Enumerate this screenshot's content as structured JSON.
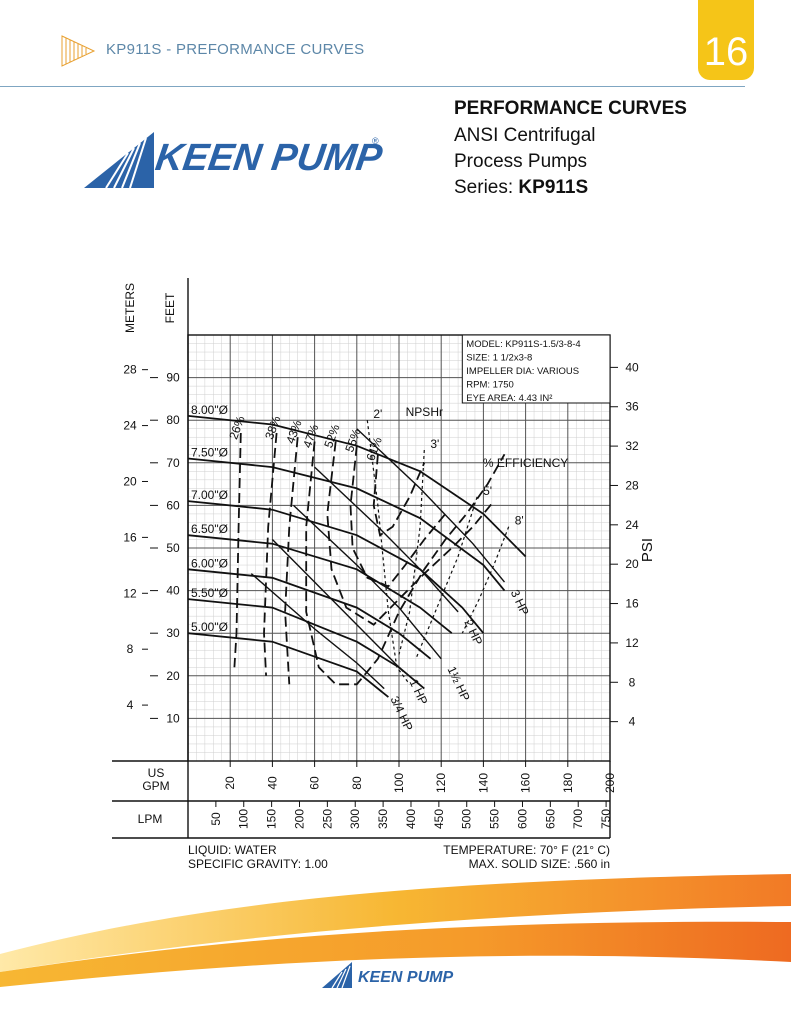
{
  "header": {
    "breadcrumb": "KP911S - PREFORMANCE CURVES",
    "page_number": "16"
  },
  "brand": {
    "name": "KEEN PUMP",
    "registered": "®",
    "footer_name": "KEEN PUMP",
    "colors": {
      "blue": "#2b63a8",
      "gold": "#f5c518",
      "orange": "#f07a26"
    }
  },
  "title_block": {
    "heading": "PERFORMANCE CURVES",
    "line1": "ANSI Centrifugal",
    "line2": "Process Pumps",
    "series_label": "Series:",
    "series_value": "KP911S"
  },
  "chart_data": {
    "type": "line",
    "model_box": [
      "MODEL: KP911S-1.5/3-8-4",
      "SIZE: 1 1/2x3-8",
      "IMPELLER DIA: VARIOUS",
      "RPM: 1750",
      "EYE AREA: 4.43 IN²"
    ],
    "axis_titles": {
      "meters": "METERS",
      "feet": "FEET",
      "psi": "PSI",
      "gpm": "US GPM",
      "lpm": "LPM"
    },
    "x": {
      "label": "US GPM",
      "min": 0,
      "max": 200,
      "ticks": [
        "20",
        "40",
        "60",
        "80",
        "100",
        "120",
        "140",
        "160",
        "180",
        "200"
      ],
      "tick_values": [
        20,
        40,
        60,
        80,
        100,
        120,
        140,
        160,
        180,
        200
      ]
    },
    "lpm_ticks": {
      "values": [
        50,
        100,
        150,
        200,
        250,
        300,
        350,
        400,
        450,
        500,
        550,
        600,
        650,
        700,
        750
      ],
      "labels": [
        "50",
        "100",
        "150",
        "200",
        "250",
        "300",
        "350",
        "400",
        "450",
        "500",
        "550",
        "600",
        "650",
        "700",
        "750"
      ]
    },
    "y_feet": {
      "label": "FEET",
      "min": 0,
      "max": 100,
      "ticks": [
        "10",
        "20",
        "30",
        "40",
        "50",
        "60",
        "70",
        "80",
        "90"
      ],
      "tick_values": [
        10,
        20,
        30,
        40,
        50,
        60,
        70,
        80,
        90
      ]
    },
    "y_meters": {
      "label": "METERS",
      "ticks": [
        "4",
        "8",
        "12",
        "16",
        "20",
        "24",
        "28"
      ],
      "tick_values": [
        4,
        8,
        12,
        16,
        20,
        24,
        28
      ]
    },
    "y_psi": {
      "label": "PSI",
      "ticks": [
        "4",
        "8",
        "12",
        "16",
        "20",
        "24",
        "28",
        "32",
        "36",
        "40"
      ],
      "tick_values": [
        4,
        8,
        12,
        16,
        20,
        24,
        28,
        32,
        36,
        40
      ]
    },
    "impeller_curves": [
      {
        "name": "8.00\"Ø",
        "points": [
          [
            0,
            81
          ],
          [
            40,
            79
          ],
          [
            80,
            74
          ],
          [
            110,
            68
          ],
          [
            140,
            58
          ],
          [
            160,
            48
          ]
        ]
      },
      {
        "name": "7.50\"Ø",
        "points": [
          [
            0,
            71
          ],
          [
            40,
            69
          ],
          [
            80,
            64
          ],
          [
            110,
            57
          ],
          [
            140,
            46
          ],
          [
            150,
            40
          ]
        ]
      },
      {
        "name": "7.00\"Ø",
        "points": [
          [
            0,
            61
          ],
          [
            40,
            59
          ],
          [
            80,
            53
          ],
          [
            110,
            45
          ],
          [
            130,
            36
          ],
          [
            140,
            30
          ]
        ]
      },
      {
        "name": "6.50\"Ø",
        "points": [
          [
            0,
            53
          ],
          [
            40,
            51
          ],
          [
            80,
            45
          ],
          [
            110,
            36
          ],
          [
            125,
            30
          ]
        ]
      },
      {
        "name": "6.00\"Ø",
        "points": [
          [
            0,
            45
          ],
          [
            40,
            43
          ],
          [
            80,
            36
          ],
          [
            100,
            30
          ],
          [
            115,
            24
          ]
        ]
      },
      {
        "name": "5.50\"Ø",
        "points": [
          [
            0,
            38
          ],
          [
            40,
            36
          ],
          [
            80,
            28
          ],
          [
            100,
            22
          ],
          [
            112,
            17
          ]
        ]
      },
      {
        "name": "5.00\"Ø",
        "points": [
          [
            0,
            30
          ],
          [
            40,
            28
          ],
          [
            80,
            21
          ],
          [
            95,
            15
          ]
        ]
      }
    ],
    "efficiency_curves": [
      {
        "name": "26%",
        "points": [
          [
            25,
            77
          ],
          [
            24,
            55
          ],
          [
            23,
            30
          ],
          [
            22,
            22
          ]
        ]
      },
      {
        "name": "38%",
        "points": [
          [
            42,
            77
          ],
          [
            38,
            55
          ],
          [
            36,
            30
          ],
          [
            37,
            20
          ]
        ]
      },
      {
        "name": "43%",
        "points": [
          [
            52,
            76
          ],
          [
            48,
            55
          ],
          [
            46,
            35
          ],
          [
            48,
            18
          ]
        ]
      },
      {
        "name": "47%",
        "points": [
          [
            60,
            75
          ],
          [
            56,
            55
          ],
          [
            56,
            35
          ],
          [
            62,
            22
          ],
          [
            70,
            18
          ],
          [
            80,
            18
          ],
          [
            90,
            24
          ],
          [
            100,
            35
          ],
          [
            112,
            45
          ],
          [
            122,
            52
          ],
          [
            132,
            58
          ],
          [
            142,
            65
          ],
          [
            150,
            72
          ]
        ]
      },
      {
        "name": "52%",
        "points": [
          [
            70,
            75
          ],
          [
            66,
            58
          ],
          [
            68,
            45
          ],
          [
            75,
            36
          ],
          [
            88,
            32
          ],
          [
            100,
            38
          ],
          [
            112,
            44
          ],
          [
            125,
            50
          ],
          [
            135,
            55
          ],
          [
            145,
            61
          ]
        ]
      },
      {
        "name": "55%",
        "points": [
          [
            80,
            74
          ],
          [
            77,
            60
          ],
          [
            78,
            50
          ],
          [
            85,
            43
          ],
          [
            95,
            41
          ],
          [
            103,
            46
          ],
          [
            112,
            52
          ],
          [
            122,
            58
          ]
        ]
      },
      {
        "name": "61%",
        "points": [
          [
            90,
            72
          ],
          [
            88,
            60
          ],
          [
            91,
            53
          ],
          [
            97,
            55
          ],
          [
            105,
            62
          ],
          [
            112,
            70
          ]
        ]
      }
    ],
    "hp_curves": [
      {
        "name": "3/4 HP",
        "points": [
          [
            30,
            44
          ],
          [
            60,
            31
          ],
          [
            80,
            23
          ],
          [
            93,
            17
          ]
        ]
      },
      {
        "name": "1 HP",
        "points": [
          [
            40,
            52
          ],
          [
            70,
            37
          ],
          [
            90,
            27
          ],
          [
            102,
            21
          ]
        ]
      },
      {
        "name": "1½ HP",
        "points": [
          [
            50,
            60
          ],
          [
            80,
            46
          ],
          [
            100,
            36
          ],
          [
            120,
            24
          ]
        ]
      },
      {
        "name": "2 HP",
        "points": [
          [
            60,
            69
          ],
          [
            90,
            55
          ],
          [
            110,
            45
          ],
          [
            128,
            35
          ]
        ]
      },
      {
        "name": "3 HP",
        "points": [
          [
            80,
            78
          ],
          [
            110,
            64
          ],
          [
            135,
            51
          ],
          [
            150,
            42
          ]
        ]
      }
    ],
    "npshr_curves": [
      {
        "name": "2'",
        "points": [
          [
            85,
            80
          ],
          [
            90,
            60
          ],
          [
            95,
            35
          ],
          [
            99,
            22
          ],
          [
            105,
            18
          ]
        ]
      },
      {
        "name": "3'",
        "points": [
          [
            112,
            73
          ],
          [
            110,
            55
          ],
          [
            105,
            35
          ],
          [
            100,
            25
          ]
        ]
      },
      {
        "name": "5'",
        "points": [
          [
            137,
            62
          ],
          [
            128,
            48
          ],
          [
            118,
            36
          ],
          [
            108,
            24
          ]
        ]
      },
      {
        "name": "8'",
        "points": [
          [
            152,
            55
          ],
          [
            145,
            46
          ],
          [
            138,
            38
          ],
          [
            130,
            30
          ]
        ]
      }
    ],
    "labels": {
      "npshr": "NPSHr",
      "efficiency": "% EFFICIENCY"
    },
    "notes": {
      "liquid": "LIQUID: WATER",
      "gravity": "SPECIFIC GRAVITY: 1.00",
      "temperature": "TEMPERATURE: 70° F (21° C)",
      "solid": "MAX. SOLID SIZE: .560 in"
    }
  }
}
